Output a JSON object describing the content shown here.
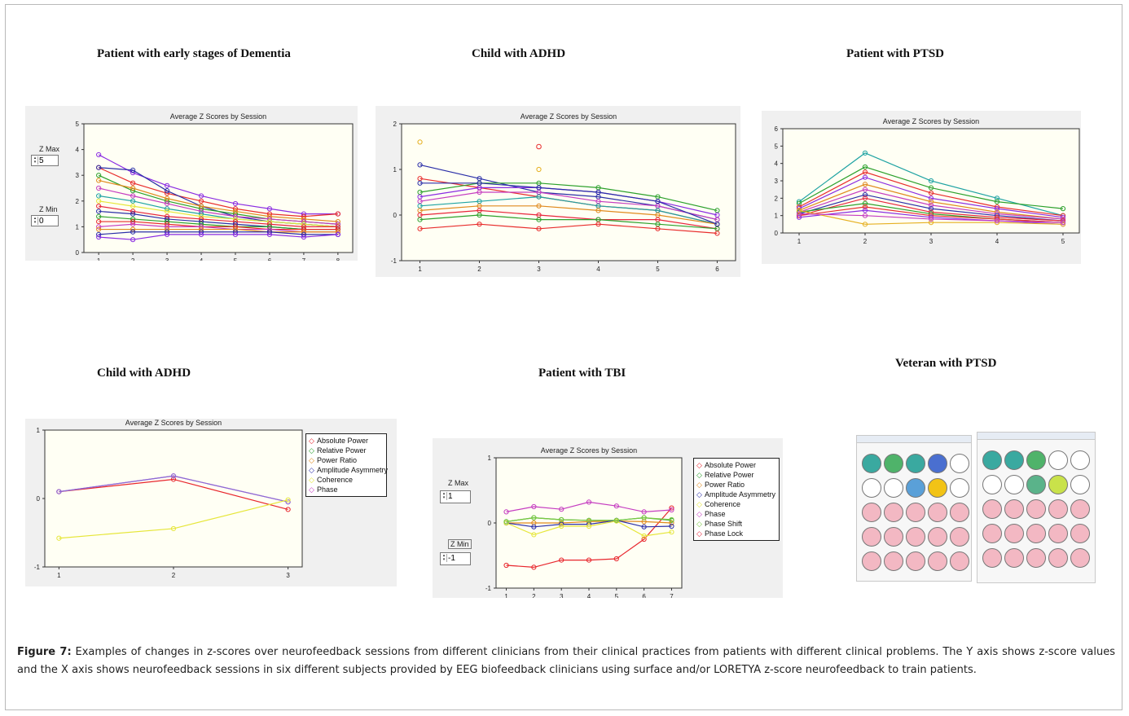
{
  "panels": [
    {
      "title": "Patient with  early stages of Dementia"
    },
    {
      "title": "Child with ADHD"
    },
    {
      "title": "Patient with PTSD"
    },
    {
      "title": "Child with ADHD"
    },
    {
      "title": "Patient with TBI"
    },
    {
      "title": "Veteran with PTSD"
    }
  ],
  "controls": {
    "dementia": {
      "zmax_label": "Z Max",
      "zmax_value": "5",
      "zmin_label": "Z Min",
      "zmin_value": "0"
    },
    "tbi": {
      "zmax_label": "Z Max",
      "zmax_value": "1",
      "zmin_label": "Z Min",
      "zmin_value": "-1"
    }
  },
  "legend": {
    "adhd2": [
      "Absolute Power",
      "Relative Power",
      "Power Ratio",
      "Amplitude Asymmetry",
      "Coherence",
      "Phase"
    ],
    "tbi": [
      "Absolute Power",
      "Relative Power",
      "Power Ratio",
      "Amplitude Asymmetry",
      "Coherence",
      "Phase",
      "Phase Shift",
      "Phase Lock"
    ],
    "colors": [
      "#e8262d",
      "#2ca02c",
      "#e08a1e",
      "#2b2fa8",
      "#e6e63a",
      "#c53cc0",
      "#7ac943",
      "#e8263c"
    ]
  },
  "caption": {
    "label": "Figure 7:",
    "text": " Examples of changes in z-scores over neurofeedback sessions from different clinicians from their clinical practices from patients with different clinical problems. The Y axis shows z-score values and the X axis shows neurofeedback sessions in six different subjects provided by EEG biofeedback clinicians using surface and/or LORETYA z-score neurofeedback to train patients."
  },
  "chart_data": [
    {
      "type": "line",
      "title": "Average Z Scores by Session",
      "x": [
        1,
        2,
        3,
        4,
        5,
        6,
        7,
        8
      ],
      "ylim": [
        0,
        5
      ],
      "yticks": [
        0,
        1,
        2,
        3,
        4,
        5
      ],
      "series": [
        {
          "color": "#8a2be2",
          "values": [
            3.8,
            3.1,
            2.6,
            2.2,
            1.9,
            1.7,
            1.5,
            1.5
          ]
        },
        {
          "color": "#e82c2c",
          "values": [
            3.3,
            2.7,
            2.3,
            2.0,
            1.7,
            1.5,
            1.4,
            1.5
          ]
        },
        {
          "color": "#2b2fa8",
          "values": [
            3.3,
            3.2,
            2.4,
            1.8,
            1.4,
            1.2,
            1.1,
            1.0
          ]
        },
        {
          "color": "#2ca02c",
          "values": [
            3.0,
            2.4,
            2.0,
            1.7,
            1.5,
            1.3,
            1.2,
            1.1
          ]
        },
        {
          "color": "#e08a1e",
          "values": [
            2.8,
            2.5,
            2.1,
            1.8,
            1.6,
            1.4,
            1.3,
            1.2
          ]
        },
        {
          "color": "#c53cc0",
          "values": [
            2.5,
            2.2,
            1.9,
            1.6,
            1.4,
            1.3,
            1.2,
            1.1
          ]
        },
        {
          "color": "#1fa3a3",
          "values": [
            2.2,
            2.0,
            1.7,
            1.5,
            1.3,
            1.2,
            1.1,
            1.0
          ]
        },
        {
          "color": "#e6e63a",
          "values": [
            2.0,
            1.8,
            1.6,
            1.4,
            1.3,
            1.2,
            1.1,
            1.0
          ]
        },
        {
          "color": "#e8263c",
          "values": [
            1.8,
            1.6,
            1.4,
            1.3,
            1.2,
            1.1,
            1.0,
            1.0
          ]
        },
        {
          "color": "#2b2fa8",
          "values": [
            1.6,
            1.5,
            1.3,
            1.2,
            1.1,
            1.0,
            0.9,
            0.9
          ]
        },
        {
          "color": "#2ca02c",
          "values": [
            1.4,
            1.3,
            1.2,
            1.1,
            1.0,
            1.0,
            0.9,
            0.9
          ]
        },
        {
          "color": "#e82c2c",
          "values": [
            1.2,
            1.2,
            1.1,
            1.0,
            1.0,
            0.9,
            0.9,
            0.9
          ]
        },
        {
          "color": "#c53cc0",
          "values": [
            1.0,
            1.1,
            1.0,
            1.0,
            0.9,
            0.9,
            0.8,
            0.8
          ]
        },
        {
          "color": "#e08a1e",
          "values": [
            0.9,
            0.9,
            0.9,
            0.9,
            0.9,
            0.8,
            0.8,
            0.8
          ]
        },
        {
          "color": "#2b2fa8",
          "values": [
            0.7,
            0.8,
            0.8,
            0.8,
            0.8,
            0.8,
            0.7,
            0.7
          ]
        },
        {
          "color": "#8a2be2",
          "values": [
            0.6,
            0.5,
            0.7,
            0.7,
            0.7,
            0.7,
            0.6,
            0.7
          ]
        }
      ]
    },
    {
      "type": "line",
      "title": "Average Z Scores by Session",
      "x": [
        1,
        2,
        3,
        4,
        5,
        6
      ],
      "ylim": [
        -1,
        2
      ],
      "yticks": [
        -1,
        0,
        1,
        2
      ],
      "series": [
        {
          "color": "#e6b020",
          "values": [
            1.6,
            null,
            1.0,
            null,
            null,
            null
          ]
        },
        {
          "color": "#2b2fa8",
          "values": [
            1.1,
            0.8,
            0.5,
            0.4,
            0.2,
            -0.1
          ]
        },
        {
          "color": "#e82c2c",
          "values": [
            0.8,
            0.6,
            0.4,
            0.2,
            0.1,
            -0.2
          ]
        },
        {
          "color": "#2ca02c",
          "values": [
            0.5,
            0.7,
            0.7,
            0.6,
            0.4,
            0.1
          ]
        },
        {
          "color": "#8a2be2",
          "values": [
            0.4,
            0.6,
            0.6,
            0.5,
            0.3,
            0.0
          ]
        },
        {
          "color": "#c53cc0",
          "values": [
            0.3,
            0.5,
            0.5,
            0.3,
            0.2,
            -0.1
          ]
        },
        {
          "color": "#1fa3a3",
          "values": [
            0.2,
            0.3,
            0.4,
            0.2,
            0.1,
            -0.2
          ]
        },
        {
          "color": "#e08a1e",
          "values": [
            0.1,
            0.2,
            0.2,
            0.1,
            0.0,
            -0.2
          ]
        },
        {
          "color": "#e8263c",
          "values": [
            0.0,
            0.1,
            0.0,
            -0.1,
            -0.1,
            -0.3
          ]
        },
        {
          "color": "#2ca02c",
          "values": [
            -0.1,
            0.0,
            -0.1,
            -0.1,
            -0.2,
            -0.3
          ]
        },
        {
          "color": "#e82c2c",
          "values": [
            -0.3,
            -0.2,
            -0.3,
            -0.2,
            -0.3,
            -0.4
          ]
        },
        {
          "color": "#2b2fa8",
          "values": [
            0.7,
            0.7,
            0.6,
            0.5,
            0.3,
            -0.2
          ]
        }
      ],
      "points": [
        {
          "x": 3,
          "y": 1.5,
          "color": "#e82c2c"
        }
      ]
    },
    {
      "type": "line",
      "title": "Average Z Scores by Session",
      "x": [
        1,
        2,
        3,
        4,
        5
      ],
      "ylim": [
        0,
        6
      ],
      "yticks": [
        0,
        1,
        2,
        3,
        4,
        5,
        6
      ],
      "series": [
        {
          "color": "#1fa3a3",
          "values": [
            1.8,
            4.6,
            3.0,
            2.0,
            1.0
          ]
        },
        {
          "color": "#2ca02c",
          "values": [
            1.7,
            3.8,
            2.6,
            1.8,
            1.4
          ]
        },
        {
          "color": "#e82c2c",
          "values": [
            1.5,
            3.5,
            2.3,
            1.5,
            1.0
          ]
        },
        {
          "color": "#8a2be2",
          "values": [
            1.4,
            3.2,
            2.0,
            1.4,
            0.9
          ]
        },
        {
          "color": "#e08a1e",
          "values": [
            1.3,
            2.8,
            1.8,
            1.2,
            0.8
          ]
        },
        {
          "color": "#c53cc0",
          "values": [
            1.2,
            2.5,
            1.6,
            1.1,
            0.8
          ]
        },
        {
          "color": "#2b2fa8",
          "values": [
            1.1,
            2.2,
            1.4,
            1.0,
            0.7
          ]
        },
        {
          "color": "#e8263c",
          "values": [
            1.0,
            2.0,
            1.2,
            0.9,
            0.7
          ]
        },
        {
          "color": "#2ca02c",
          "values": [
            1.2,
            1.7,
            1.1,
            0.8,
            0.6
          ]
        },
        {
          "color": "#e82c2c",
          "values": [
            1.0,
            1.5,
            1.0,
            0.8,
            0.6
          ]
        },
        {
          "color": "#8a2be2",
          "values": [
            0.9,
            1.3,
            0.9,
            0.7,
            0.5
          ]
        },
        {
          "color": "#e6b020",
          "values": [
            1.3,
            0.5,
            0.6,
            0.6,
            0.5
          ]
        },
        {
          "color": "#c53cc0",
          "values": [
            1.1,
            1.0,
            0.8,
            0.7,
            0.6
          ]
        }
      ]
    },
    {
      "type": "line",
      "title": "Average Z Scores by Session",
      "x": [
        1,
        2,
        3
      ],
      "ylim": [
        -1,
        1
      ],
      "yticks": [
        -1,
        0,
        1
      ],
      "series": [
        {
          "name": "Absolute Power",
          "color": "#e8262d",
          "values": [
            0.1,
            0.28,
            -0.16
          ]
        },
        {
          "name": "Phase",
          "color": "#c53cc0",
          "values": [
            0.1,
            0.33,
            -0.05
          ]
        },
        {
          "name": "Amplitude Asymmetry",
          "color": "#8a6fd6",
          "values": [
            0.1,
            0.33,
            -0.05
          ]
        },
        {
          "name": "Coherence",
          "color": "#e6e63a",
          "values": [
            -0.58,
            -0.44,
            -0.02
          ]
        }
      ]
    },
    {
      "type": "line",
      "title": "Average Z Scores by Session",
      "x": [
        1,
        2,
        3,
        4,
        5,
        6,
        7
      ],
      "ylim": [
        -1,
        1
      ],
      "yticks": [
        -1,
        0,
        1
      ],
      "series": [
        {
          "name": "Absolute Power",
          "color": "#e8262d",
          "values": [
            -0.65,
            -0.68,
            -0.57,
            -0.57,
            -0.55,
            -0.25,
            0.23
          ]
        },
        {
          "name": "Relative Power",
          "color": "#2ca02c",
          "values": [
            0.02,
            0.08,
            0.05,
            0.04,
            0.04,
            0.08,
            0.04
          ]
        },
        {
          "name": "Power Ratio",
          "color": "#e08a1e",
          "values": [
            0.0,
            0.0,
            0.0,
            0.02,
            0.03,
            0.02,
            0.0
          ]
        },
        {
          "name": "Phase",
          "color": "#c53cc0",
          "values": [
            0.17,
            0.25,
            0.21,
            0.32,
            0.26,
            0.17,
            0.2
          ]
        },
        {
          "name": "Amplitude Asymmetry",
          "color": "#2b2fa8",
          "values": [
            0.0,
            -0.06,
            -0.02,
            -0.02,
            0.04,
            -0.06,
            -0.05
          ]
        },
        {
          "name": "Coherence",
          "color": "#e6e63a",
          "values": [
            0.0,
            -0.18,
            -0.05,
            -0.05,
            0.03,
            -0.2,
            -0.14
          ]
        },
        {
          "name": "Phase Shift",
          "color": "#7ac943",
          "values": [
            0.02,
            0.08,
            0.05,
            0.04,
            0.04,
            0.08,
            0.05
          ]
        }
      ]
    }
  ]
}
